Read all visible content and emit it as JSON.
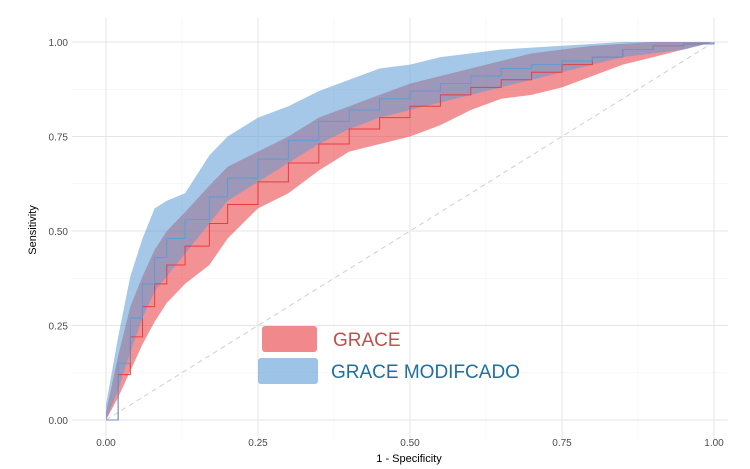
{
  "chart_data": {
    "type": "line",
    "title": "",
    "xlabel": "1 - Specificity",
    "ylabel": "Sensitivity",
    "xlim": [
      0,
      1
    ],
    "ylim": [
      0,
      1
    ],
    "x_ticks": [
      "0.00",
      "0.25",
      "0.50",
      "0.75",
      "1.00"
    ],
    "y_ticks": [
      "0.00",
      "0.25",
      "0.50",
      "0.75",
      "1.00"
    ],
    "grid": true,
    "legend_position": "bottom-center",
    "reference_line": {
      "style": "dashed",
      "from": [
        0,
        0
      ],
      "to": [
        1,
        1
      ]
    },
    "series": [
      {
        "name": "GRACE",
        "color": "#e8383d",
        "text_color": "#c0504d",
        "curve": [
          [
            0,
            0
          ],
          [
            0.02,
            0.12
          ],
          [
            0.04,
            0.22
          ],
          [
            0.06,
            0.3
          ],
          [
            0.08,
            0.36
          ],
          [
            0.1,
            0.41
          ],
          [
            0.13,
            0.46
          ],
          [
            0.17,
            0.52
          ],
          [
            0.2,
            0.57
          ],
          [
            0.25,
            0.63
          ],
          [
            0.3,
            0.68
          ],
          [
            0.35,
            0.73
          ],
          [
            0.4,
            0.77
          ],
          [
            0.45,
            0.8
          ],
          [
            0.5,
            0.83
          ],
          [
            0.55,
            0.86
          ],
          [
            0.6,
            0.88
          ],
          [
            0.65,
            0.9
          ],
          [
            0.7,
            0.92
          ],
          [
            0.75,
            0.94
          ],
          [
            0.8,
            0.96
          ],
          [
            0.85,
            0.98
          ],
          [
            0.9,
            0.99
          ],
          [
            0.95,
            0.995
          ],
          [
            1,
            1
          ]
        ],
        "lower": [
          [
            0,
            0
          ],
          [
            0.02,
            0.06
          ],
          [
            0.04,
            0.13
          ],
          [
            0.06,
            0.2
          ],
          [
            0.08,
            0.26
          ],
          [
            0.1,
            0.31
          ],
          [
            0.13,
            0.36
          ],
          [
            0.17,
            0.41
          ],
          [
            0.2,
            0.48
          ],
          [
            0.25,
            0.56
          ],
          [
            0.3,
            0.6
          ],
          [
            0.35,
            0.66
          ],
          [
            0.4,
            0.71
          ],
          [
            0.45,
            0.73
          ],
          [
            0.5,
            0.75
          ],
          [
            0.55,
            0.78
          ],
          [
            0.6,
            0.82
          ],
          [
            0.65,
            0.85
          ],
          [
            0.7,
            0.86
          ],
          [
            0.75,
            0.88
          ],
          [
            0.8,
            0.91
          ],
          [
            0.85,
            0.94
          ],
          [
            0.9,
            0.96
          ],
          [
            0.95,
            0.98
          ],
          [
            1,
            1
          ]
        ],
        "upper": [
          [
            0,
            0.02
          ],
          [
            0.02,
            0.17
          ],
          [
            0.04,
            0.3
          ],
          [
            0.06,
            0.38
          ],
          [
            0.08,
            0.45
          ],
          [
            0.1,
            0.5
          ],
          [
            0.13,
            0.55
          ],
          [
            0.17,
            0.62
          ],
          [
            0.2,
            0.67
          ],
          [
            0.25,
            0.71
          ],
          [
            0.3,
            0.75
          ],
          [
            0.35,
            0.8
          ],
          [
            0.4,
            0.83
          ],
          [
            0.45,
            0.86
          ],
          [
            0.5,
            0.89
          ],
          [
            0.55,
            0.91
          ],
          [
            0.6,
            0.93
          ],
          [
            0.65,
            0.95
          ],
          [
            0.7,
            0.97
          ],
          [
            0.75,
            0.98
          ],
          [
            0.8,
            0.99
          ],
          [
            0.85,
            0.995
          ],
          [
            0.9,
            1
          ],
          [
            0.95,
            1
          ],
          [
            1,
            1
          ]
        ]
      },
      {
        "name": "GRACE MODIFCADO",
        "color": "#5b9bd5",
        "text_color": "#1f6fa0",
        "curve": [
          [
            0,
            0
          ],
          [
            0.02,
            0.15
          ],
          [
            0.04,
            0.27
          ],
          [
            0.06,
            0.36
          ],
          [
            0.08,
            0.43
          ],
          [
            0.1,
            0.48
          ],
          [
            0.13,
            0.53
          ],
          [
            0.17,
            0.59
          ],
          [
            0.2,
            0.64
          ],
          [
            0.25,
            0.69
          ],
          [
            0.3,
            0.74
          ],
          [
            0.35,
            0.79
          ],
          [
            0.4,
            0.82
          ],
          [
            0.45,
            0.85
          ],
          [
            0.5,
            0.87
          ],
          [
            0.55,
            0.89
          ],
          [
            0.6,
            0.91
          ],
          [
            0.65,
            0.93
          ],
          [
            0.7,
            0.94
          ],
          [
            0.75,
            0.95
          ],
          [
            0.8,
            0.96
          ],
          [
            0.85,
            0.98
          ],
          [
            0.9,
            0.99
          ],
          [
            0.95,
            0.995
          ],
          [
            1,
            1
          ]
        ],
        "lower": [
          [
            0,
            0
          ],
          [
            0.02,
            0.08
          ],
          [
            0.04,
            0.18
          ],
          [
            0.06,
            0.27
          ],
          [
            0.08,
            0.34
          ],
          [
            0.1,
            0.38
          ],
          [
            0.13,
            0.44
          ],
          [
            0.17,
            0.52
          ],
          [
            0.2,
            0.58
          ],
          [
            0.25,
            0.63
          ],
          [
            0.3,
            0.68
          ],
          [
            0.35,
            0.73
          ],
          [
            0.4,
            0.77
          ],
          [
            0.45,
            0.8
          ],
          [
            0.5,
            0.82
          ],
          [
            0.55,
            0.84
          ],
          [
            0.6,
            0.86
          ],
          [
            0.65,
            0.88
          ],
          [
            0.7,
            0.9
          ],
          [
            0.75,
            0.92
          ],
          [
            0.8,
            0.94
          ],
          [
            0.85,
            0.96
          ],
          [
            0.9,
            0.97
          ],
          [
            0.95,
            0.98
          ],
          [
            1,
            1
          ]
        ],
        "upper": [
          [
            0,
            0.04
          ],
          [
            0.02,
            0.22
          ],
          [
            0.04,
            0.38
          ],
          [
            0.06,
            0.48
          ],
          [
            0.08,
            0.56
          ],
          [
            0.1,
            0.58
          ],
          [
            0.13,
            0.6
          ],
          [
            0.17,
            0.7
          ],
          [
            0.2,
            0.75
          ],
          [
            0.25,
            0.8
          ],
          [
            0.3,
            0.83
          ],
          [
            0.35,
            0.87
          ],
          [
            0.4,
            0.9
          ],
          [
            0.45,
            0.93
          ],
          [
            0.5,
            0.94
          ],
          [
            0.55,
            0.96
          ],
          [
            0.6,
            0.97
          ],
          [
            0.65,
            0.98
          ],
          [
            0.7,
            0.985
          ],
          [
            0.75,
            0.99
          ],
          [
            0.8,
            0.995
          ],
          [
            0.85,
            1
          ],
          [
            0.9,
            1
          ],
          [
            0.95,
            1
          ],
          [
            1,
            1
          ]
        ]
      }
    ]
  }
}
